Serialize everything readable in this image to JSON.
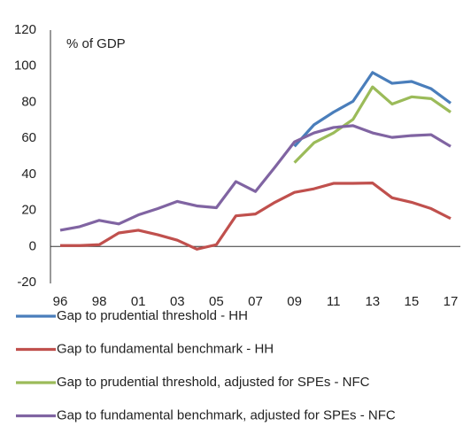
{
  "chart_data": {
    "type": "line",
    "ylabel": "% of GDP",
    "categories": [
      "96",
      null,
      "98",
      null,
      "01",
      null,
      "03",
      null,
      "05",
      null,
      "07",
      null,
      "09",
      null,
      "11",
      null,
      "13",
      null,
      "15",
      null,
      "17"
    ],
    "ylim": [
      -20,
      120
    ],
    "yticks": [
      -20,
      0,
      20,
      40,
      60,
      80,
      100,
      120
    ],
    "grid": false,
    "series": [
      {
        "name": "Gap to prudential threshold - HH",
        "color": "#4a7ebb",
        "values": [
          null,
          null,
          null,
          null,
          null,
          null,
          null,
          null,
          null,
          null,
          null,
          null,
          55.5,
          67.5,
          74.5,
          80.5,
          96.5,
          90.5,
          91.5,
          87.5,
          79.5
        ]
      },
      {
        "name": "Gap to fundamental benchmark - HH",
        "color": "#c0504d",
        "values": [
          0.5,
          0.5,
          1,
          7.5,
          9,
          6.5,
          3.5,
          -1.5,
          1,
          17,
          18,
          24.5,
          30,
          32,
          35,
          35,
          35.2,
          27,
          24.5,
          21,
          15.5
        ]
      },
      {
        "name": "Gap to prudential threshold, adjusted for SPEs - NFC",
        "color": "#9bbb59",
        "values": [
          null,
          null,
          null,
          null,
          null,
          null,
          null,
          null,
          null,
          null,
          null,
          null,
          46.5,
          57.5,
          63,
          70.5,
          88.5,
          79,
          83,
          82,
          74.5
        ]
      },
      {
        "name": "Gap to fundamental benchmark, adjusted for SPEs - NFC",
        "color": "#8064a2",
        "values": [
          9,
          11,
          14.5,
          12.5,
          17.5,
          21,
          25,
          22.5,
          21.5,
          36,
          30.5,
          44,
          58,
          63,
          66,
          67,
          63,
          60.5,
          61.5,
          62,
          55.5
        ]
      }
    ]
  }
}
